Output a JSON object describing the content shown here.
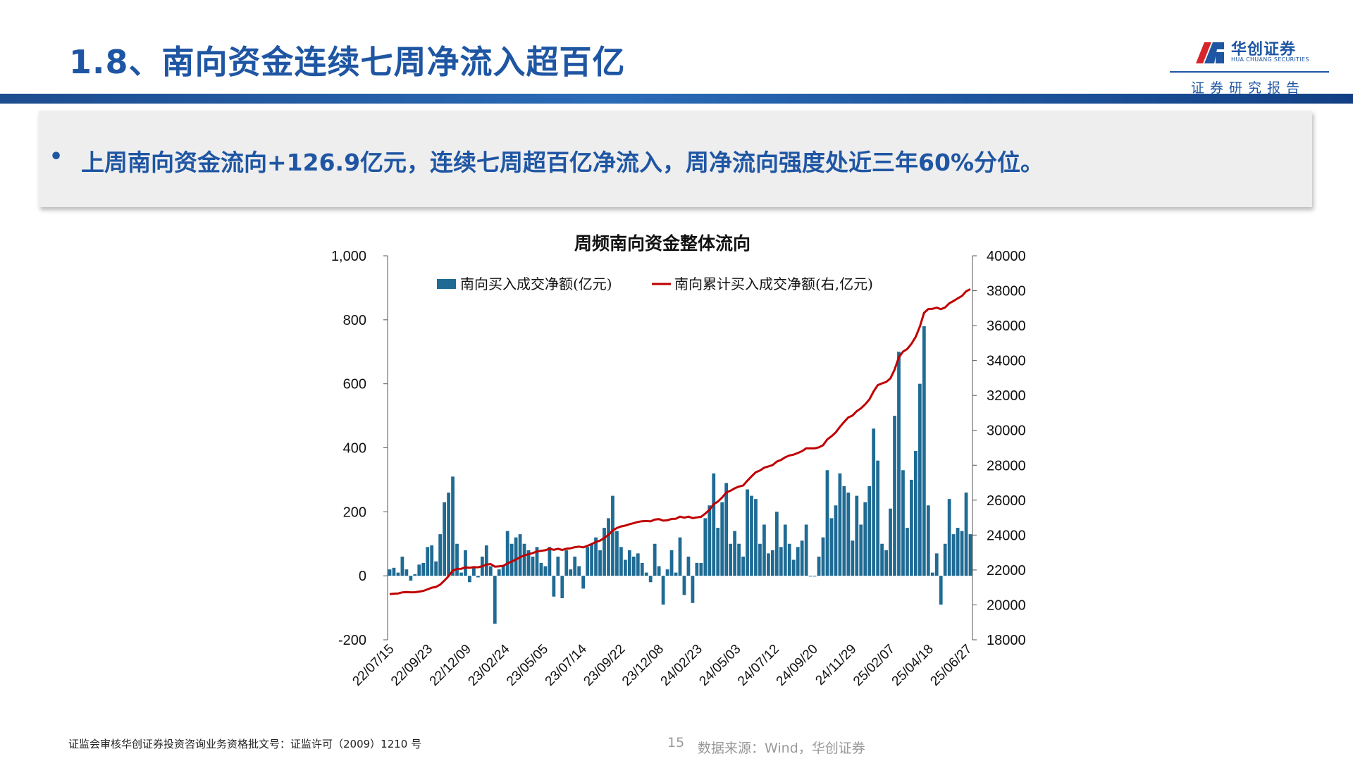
{
  "header": {
    "title": "1.8、南向资金连续七周净流入超百亿",
    "logo_name": "华创证券",
    "logo_sub": "HUA CHUANG SECURITIES",
    "report_tag": "证券研究报告"
  },
  "summary": {
    "bullet": "•",
    "text": "上周南向资金流向+126.9亿元，连续七周超百亿净流入，周净流向强度处近三年60%分位。"
  },
  "footer": {
    "license": "证监会审核华创证券投资咨询业务资格批文号：证监许可（2009）1210 号",
    "page_number": "15",
    "source": "数据来源：Wind，华创证券"
  },
  "colors": {
    "brand": "#1F56A3",
    "bar": "#1F6B94",
    "line": "#C00000",
    "logo_red": "#D7262B"
  },
  "chart_data": {
    "type": "bar+line",
    "title": "周频南向资金整体流向",
    "legend": [
      "南向买入成交净额(亿元)",
      "南向累计买入成交净额(右,亿元)"
    ],
    "legend_position": "top",
    "left_axis": {
      "range": [
        -200,
        1000
      ],
      "ticks": [
        "-200",
        "0",
        "200",
        "400",
        "600",
        "800",
        "1,000"
      ],
      "tick_values": [
        -200,
        0,
        200,
        400,
        600,
        800,
        1000
      ]
    },
    "right_axis": {
      "range": [
        18000,
        40000
      ],
      "ticks": [
        "18000",
        "20000",
        "22000",
        "24000",
        "26000",
        "28000",
        "30000",
        "32000",
        "34000",
        "36000",
        "38000",
        "40000"
      ],
      "tick_values": [
        18000,
        20000,
        22000,
        24000,
        26000,
        28000,
        30000,
        32000,
        34000,
        36000,
        38000,
        40000
      ]
    },
    "x_tick_labels": [
      "22/07/15",
      "22/09/23",
      "22/12/09",
      "23/02/24",
      "23/05/05",
      "23/07/14",
      "23/09/22",
      "23/12/08",
      "24/02/23",
      "24/05/03",
      "24/07/12",
      "24/09/20",
      "24/11/29",
      "25/02/07",
      "25/04/18",
      "25/06/27"
    ],
    "series": [
      {
        "name": "南向买入成交净额(亿元)",
        "kind": "bar",
        "axis": "left",
        "values": [
          20,
          25,
          10,
          60,
          20,
          -15,
          5,
          35,
          40,
          90,
          95,
          45,
          130,
          230,
          260,
          310,
          100,
          10,
          80,
          -20,
          30,
          -5,
          60,
          95,
          30,
          -150,
          20,
          30,
          140,
          100,
          120,
          130,
          100,
          80,
          60,
          90,
          40,
          30,
          90,
          -65,
          60,
          -70,
          80,
          20,
          60,
          30,
          -40,
          90,
          100,
          120,
          80,
          150,
          180,
          250,
          140,
          90,
          50,
          80,
          60,
          70,
          40,
          10,
          -20,
          100,
          30,
          -90,
          20,
          80,
          10,
          120,
          -60,
          60,
          -85,
          40,
          40,
          180,
          220,
          320,
          150,
          230,
          290,
          100,
          140,
          100,
          60,
          270,
          250,
          240,
          100,
          160,
          70,
          80,
          200,
          90,
          160,
          100,
          50,
          90,
          110,
          160,
          0,
          0,
          60,
          120,
          330,
          180,
          220,
          320,
          280,
          260,
          110,
          250,
          160,
          230,
          280,
          460,
          360,
          100,
          80,
          210,
          500,
          700,
          330,
          150,
          300,
          390,
          600,
          780,
          220,
          10,
          70,
          -90,
          100,
          240,
          130,
          150,
          140,
          260,
          130
        ]
      },
      {
        "name": "南向累计买入成交净额(右,亿元)",
        "kind": "line",
        "axis": "right",
        "note": "cumulative of bar values starting at 20600"
      }
    ],
    "line_start": 20600
  }
}
